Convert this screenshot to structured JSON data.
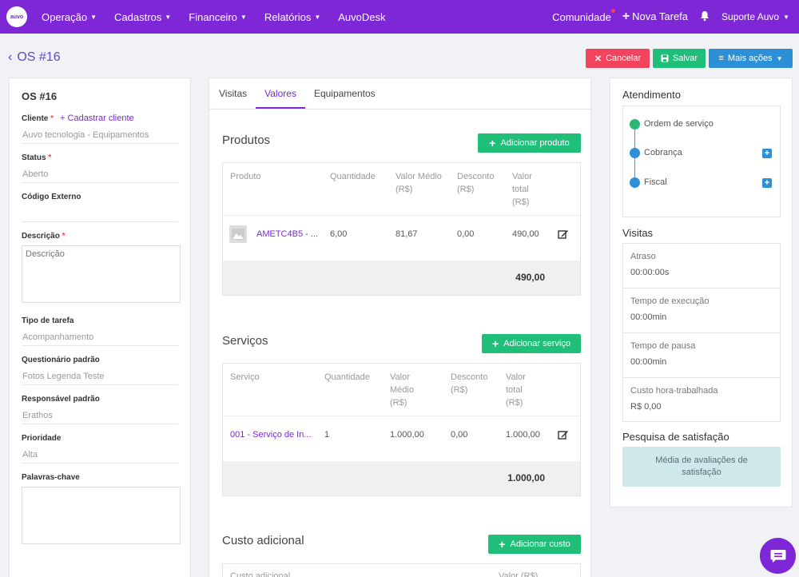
{
  "topnav": {
    "logo_text": "auvo",
    "menu": [
      {
        "label": "Operação",
        "has_dropdown": true
      },
      {
        "label": "Cadastros",
        "has_dropdown": true
      },
      {
        "label": "Financeiro",
        "has_dropdown": true
      },
      {
        "label": "Relatórios",
        "has_dropdown": true
      },
      {
        "label": "AuvoDesk",
        "has_dropdown": false
      }
    ],
    "comunidade": "Comunidade",
    "nova_tarefa": "Nova Tarefa",
    "suporte": "Suporte Auvo",
    "colors": {
      "bar": "#7d27d6",
      "notification_dot": "#ff3b5c"
    }
  },
  "header": {
    "title": "OS #16",
    "cancel": "Cancelar",
    "save": "Salvar",
    "more": "Mais ações"
  },
  "left": {
    "os_title": "OS #16",
    "cliente_label": "Cliente",
    "cadastrar_cliente": "+ Cadastrar cliente",
    "cliente_value": "Auvo tecnologia - Equipamentos",
    "status_label": "Status",
    "status_value": "Aberto",
    "codigo_label": "Código Externo",
    "codigo_value": "",
    "descricao_label": "Descrição",
    "descricao_placeholder": "Descrição",
    "tipo_label": "Tipo de tarefa",
    "tipo_value": "Acompanhamento",
    "questionario_label": "Questionário padrão",
    "questionario_value": "Fotos Legenda Teste",
    "responsavel_label": "Responsável padrão",
    "responsavel_value": "Erathos",
    "prioridade_label": "Prioridade",
    "prioridade_value": "Alta",
    "palavras_label": "Palavras-chave"
  },
  "center": {
    "tabs": [
      "Visitas",
      "Valores",
      "Equipamentos"
    ],
    "active_tab": "Valores",
    "produtos": {
      "title": "Produtos",
      "add": "Adicionar produto",
      "headers": [
        "Produto",
        "Quantidade",
        "Valor Médio (R$)",
        "Desconto (R$)",
        "Valor total (R$)"
      ],
      "rows": [
        {
          "name": "AMETC4B5 - ...",
          "qty": "6,00",
          "avg": "81,67",
          "disc": "0,00",
          "total": "490,00"
        }
      ],
      "total": "490,00"
    },
    "servicos": {
      "title": "Serviços",
      "add": "Adicionar serviço",
      "headers": [
        "Serviço",
        "Quantidade",
        "Valor Médio (R$)",
        "Desconto (R$)",
        "Valor total (R$)"
      ],
      "rows": [
        {
          "name": "001 - Serviço de In...",
          "qty": "1",
          "avg": "1.000,00",
          "disc": "0,00",
          "total": "1.000,00"
        }
      ],
      "total": "1.000,00"
    },
    "custo": {
      "title": "Custo adicional",
      "add": "Adicionar custo",
      "headers": [
        "Custo adicional",
        "Valor (R$)"
      ]
    }
  },
  "right": {
    "atendimento_title": "Atendimento",
    "timeline": [
      {
        "label": "Ordem de serviço",
        "color": "#2bb673",
        "has_add": false
      },
      {
        "label": "Cobrança",
        "color": "#2d8fd5",
        "has_add": true
      },
      {
        "label": "Fiscal",
        "color": "#2d8fd5",
        "has_add": true
      }
    ],
    "visitas_title": "Visitas",
    "visitas": [
      {
        "k": "Atraso",
        "v": "00:00:00s"
      },
      {
        "k": "Tempo de execução",
        "v": "00:00min"
      },
      {
        "k": "Tempo de pausa",
        "v": "00:00min"
      },
      {
        "k": "Custo hora-trabalhada",
        "v": "R$ 0,00"
      }
    ],
    "pesquisa_title": "Pesquisa de satisfação",
    "pesquisa_text": "Média de avaliações de satisfação"
  }
}
